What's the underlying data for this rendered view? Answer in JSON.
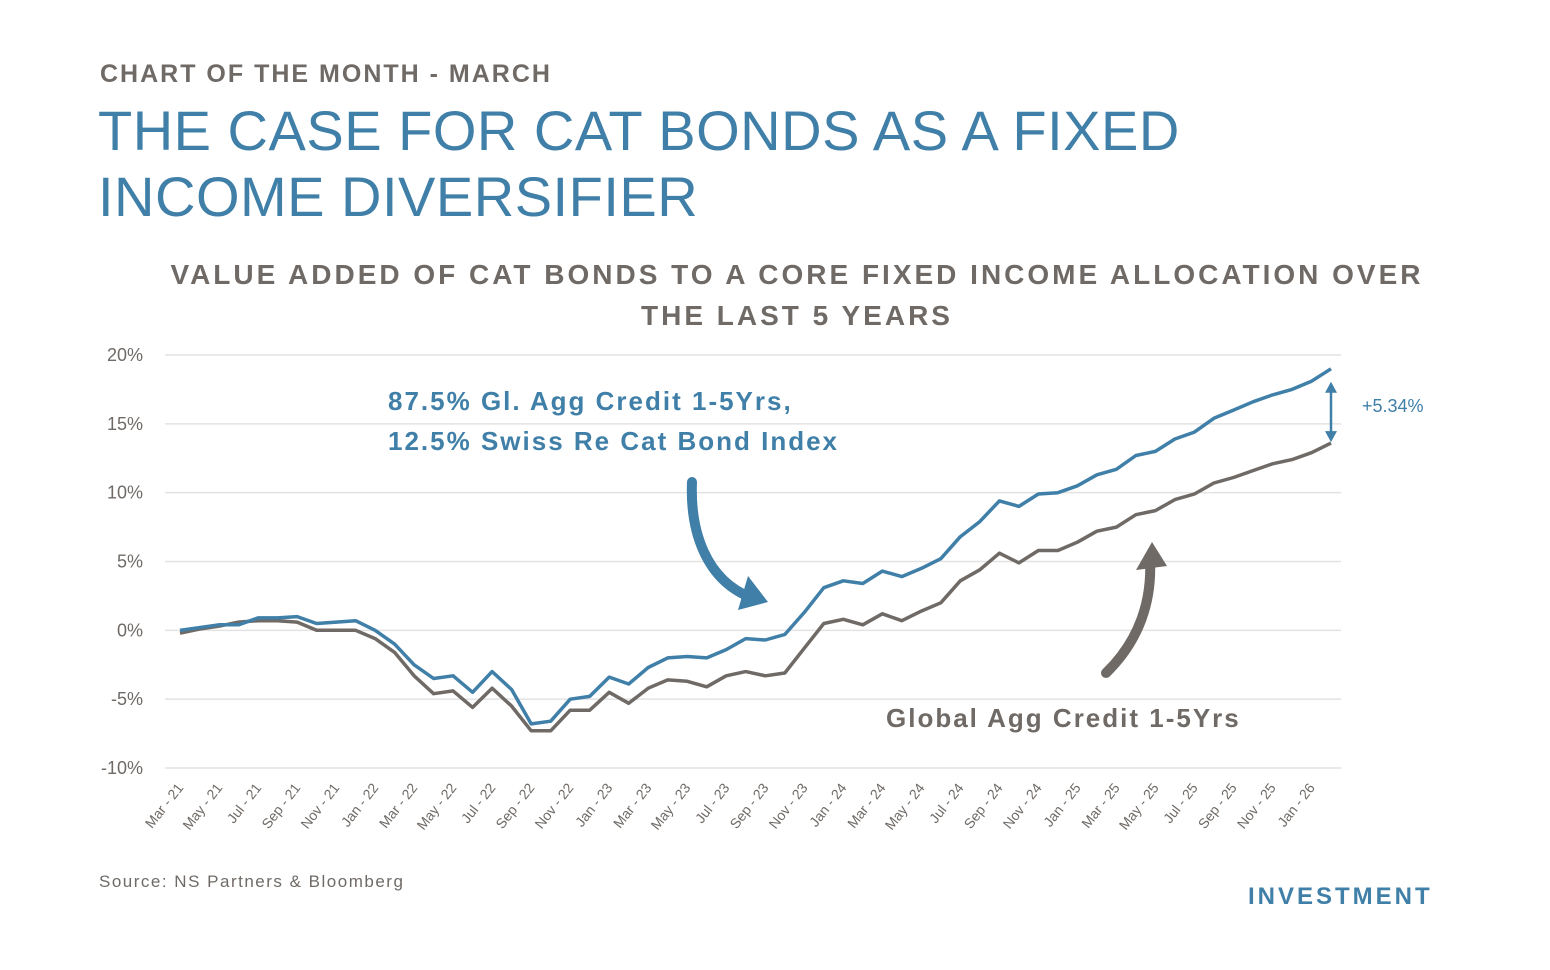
{
  "header": {
    "kicker": "CHART OF THE MONTH - MARCH",
    "title": "THE CASE FOR CAT BONDS AS A FIXED INCOME DIVERSIFIER",
    "subtitle": "VALUE ADDED OF CAT BONDS TO A CORE FIXED INCOME ALLOCATION OVER THE LAST 5 YEARS"
  },
  "footer": {
    "source": "Source: NS Partners & Bloomberg",
    "brand": "INVESTMENT"
  },
  "colors": {
    "blue": "#3f7fa8",
    "gray": "#6f6a66",
    "grid": "#e3e3e3"
  },
  "chart_data": {
    "type": "line",
    "ylim": [
      -10,
      20
    ],
    "yticks": [
      20,
      15,
      10,
      5,
      0,
      -5,
      -10
    ],
    "ytick_labels": [
      "20%",
      "15%",
      "10%",
      "5%",
      "0%",
      "-5%",
      "-10%"
    ],
    "grid": true,
    "x": [
      "Mar - 21",
      "Apr - 21",
      "May - 21",
      "Jun - 21",
      "Jul - 21",
      "Aug - 21",
      "Sep - 21",
      "Oct - 21",
      "Nov - 21",
      "Dec - 21",
      "Jan - 22",
      "Feb - 22",
      "Mar - 22",
      "Apr - 22",
      "May - 22",
      "Jun - 22",
      "Jul - 22",
      "Aug - 22",
      "Sep - 22",
      "Oct - 22",
      "Nov - 22",
      "Dec - 22",
      "Jan - 23",
      "Feb - 23",
      "Mar - 23",
      "Apr - 23",
      "May - 23",
      "Jun - 23",
      "Jul - 23",
      "Aug - 23",
      "Sep - 23",
      "Oct - 23",
      "Nov - 23",
      "Dec - 23",
      "Jan - 24",
      "Feb - 24",
      "Mar - 24",
      "Apr - 24",
      "May - 24",
      "Jun - 24",
      "Jul - 24",
      "Aug - 24",
      "Sep - 24",
      "Oct - 24",
      "Nov - 24",
      "Dec - 24",
      "Jan - 25",
      "Feb - 25",
      "Mar - 25",
      "Apr - 25",
      "May - 25",
      "Jun - 25",
      "Jul - 25",
      "Aug - 25",
      "Sep - 25",
      "Oct - 25",
      "Nov - 25",
      "Dec - 25",
      "Jan - 26",
      "Feb - 26"
    ],
    "xtick_labels": [
      "Mar - 21",
      "May - 21",
      "Jul - 21",
      "Sep - 21",
      "Nov - 21",
      "Jan - 22",
      "Mar - 22",
      "May - 22",
      "Jul - 22",
      "Sep - 22",
      "Nov - 22",
      "Jan - 23",
      "Mar - 23",
      "May - 23",
      "Jul - 23",
      "Sep - 23",
      "Nov - 23",
      "Jan - 24",
      "Mar - 24",
      "May - 24",
      "Jul - 24",
      "Sep - 24",
      "Nov - 24",
      "Jan - 25",
      "Mar - 25",
      "May - 25",
      "Jul - 25",
      "Sep - 25",
      "Nov - 25",
      "Jan - 26"
    ],
    "series": [
      {
        "name": "87.5% Gl. Agg Credit 1-5Yrs, 12.5% Swiss Re Cat Bond Index",
        "color": "#3f7fa8",
        "values": [
          0.0,
          0.2,
          0.4,
          0.4,
          0.9,
          0.9,
          1.0,
          0.5,
          0.6,
          0.7,
          0.0,
          -1.0,
          -2.5,
          -3.5,
          -3.3,
          -4.5,
          -3.0,
          -4.3,
          -6.8,
          -6.6,
          -5.0,
          -4.8,
          -3.4,
          -3.9,
          -2.7,
          -2.0,
          -1.9,
          -2.0,
          -1.4,
          -0.6,
          -0.7,
          -0.3,
          1.3,
          3.1,
          3.6,
          3.4,
          4.3,
          3.9,
          4.5,
          5.2,
          6.8,
          7.9,
          9.4,
          9.0,
          9.9,
          10.0,
          10.5,
          11.3,
          11.7,
          12.7,
          13.0,
          13.9,
          14.4,
          15.4,
          16.0,
          16.6,
          17.1,
          17.5,
          18.1,
          19.0
        ]
      },
      {
        "name": "Global Agg Credit 1-5Yrs",
        "color": "#6f6a66",
        "values": [
          -0.2,
          0.1,
          0.3,
          0.6,
          0.7,
          0.7,
          0.6,
          0.0,
          0.0,
          0.0,
          -0.6,
          -1.6,
          -3.3,
          -4.6,
          -4.4,
          -5.6,
          -4.2,
          -5.5,
          -7.3,
          -7.3,
          -5.8,
          -5.8,
          -4.5,
          -5.3,
          -4.2,
          -3.6,
          -3.7,
          -4.1,
          -3.3,
          -3.0,
          -3.3,
          -3.1,
          -1.3,
          0.5,
          0.8,
          0.4,
          1.2,
          0.7,
          1.4,
          2.0,
          3.6,
          4.4,
          5.6,
          4.9,
          5.8,
          5.8,
          6.4,
          7.2,
          7.5,
          8.4,
          8.7,
          9.5,
          9.9,
          10.7,
          11.1,
          11.6,
          12.1,
          12.4,
          12.9,
          13.6
        ]
      }
    ],
    "annotations": {
      "blue_label_line1": "87.5% Gl. Agg Credit 1-5Yrs,",
      "blue_label_line2": "12.5% Swiss Re Cat Bond Index",
      "gray_label": "Global Agg Credit 1-5Yrs",
      "gap_label": "+5.34%"
    }
  }
}
